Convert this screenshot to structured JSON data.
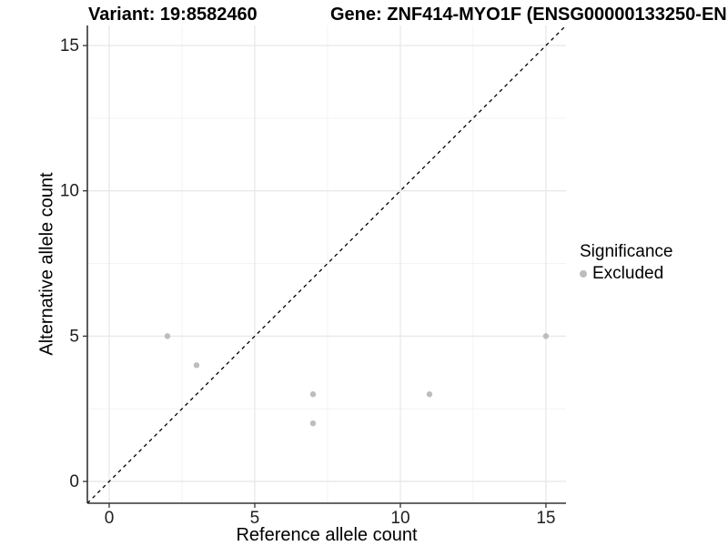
{
  "chart_data": {
    "type": "scatter",
    "title_left": "Variant: 19:8582460",
    "title_right": "Gene: ZNF414-MYO1F (ENSG00000133250-EN",
    "xlabel": "Reference allele count",
    "ylabel": "Alternative allele count",
    "xlim": [
      -0.75,
      15.69
    ],
    "ylim": [
      -0.75,
      15.69
    ],
    "x_major_ticks": [
      0,
      5,
      10,
      15
    ],
    "y_major_ticks": [
      0,
      5,
      10,
      15
    ],
    "x_minor_ticks": [
      2.5,
      7.5,
      12.5
    ],
    "y_minor_ticks": [
      2.5,
      7.5,
      12.5
    ],
    "grid": "major+minor",
    "reference_line": {
      "type": "identity-y-equals-x",
      "style": "dashed",
      "color": "#000000"
    },
    "series": [
      {
        "name": "Excluded",
        "color": "#bdbdbd",
        "points": [
          {
            "x": 2,
            "y": 5
          },
          {
            "x": 3,
            "y": 4
          },
          {
            "x": 7,
            "y": 2
          },
          {
            "x": 7,
            "y": 3
          },
          {
            "x": 11,
            "y": 3
          },
          {
            "x": 15,
            "y": 5
          }
        ]
      }
    ],
    "legend": {
      "title": "Significance",
      "position": "right",
      "entries": [
        {
          "label": "Excluded",
          "color": "#bdbdbd"
        }
      ]
    }
  },
  "colors": {
    "point": "#bdbdbd",
    "grid_major": "#e8e8e8",
    "grid_minor": "#f3f3f3",
    "axis": "#333333",
    "tick_text": "#1f1f1f",
    "reference_line": "#000000"
  }
}
